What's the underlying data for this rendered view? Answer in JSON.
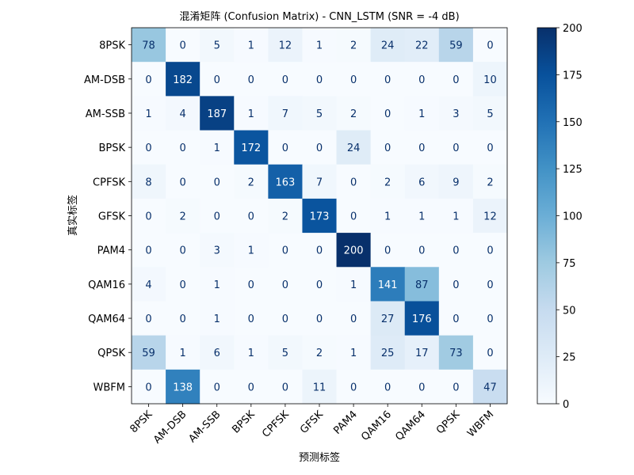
{
  "chart_data": {
    "type": "heatmap",
    "title": "混淆矩阵 (Confusion Matrix) - CNN_LSTM (SNR = -4 dB)",
    "xlabel": "预测标签",
    "ylabel": "真实标签",
    "x_categories": [
      "8PSK",
      "AM-DSB",
      "AM-SSB",
      "BPSK",
      "CPFSK",
      "GFSK",
      "PAM4",
      "QAM16",
      "QAM64",
      "QPSK",
      "WBFM"
    ],
    "y_categories": [
      "8PSK",
      "AM-DSB",
      "AM-SSB",
      "BPSK",
      "CPFSK",
      "GFSK",
      "PAM4",
      "QAM16",
      "QAM64",
      "QPSK",
      "WBFM"
    ],
    "values": [
      [
        78,
        0,
        5,
        1,
        12,
        1,
        2,
        24,
        22,
        59,
        0
      ],
      [
        0,
        182,
        0,
        0,
        0,
        0,
        0,
        0,
        0,
        0,
        10
      ],
      [
        1,
        4,
        187,
        1,
        7,
        5,
        2,
        0,
        1,
        3,
        5
      ],
      [
        0,
        0,
        1,
        172,
        0,
        0,
        24,
        0,
        0,
        0,
        0
      ],
      [
        8,
        0,
        0,
        2,
        163,
        7,
        0,
        2,
        6,
        9,
        2
      ],
      [
        0,
        2,
        0,
        0,
        2,
        173,
        0,
        1,
        1,
        1,
        12
      ],
      [
        0,
        0,
        3,
        1,
        0,
        0,
        200,
        0,
        0,
        0,
        0
      ],
      [
        4,
        0,
        1,
        0,
        0,
        0,
        1,
        141,
        87,
        0,
        0
      ],
      [
        0,
        0,
        1,
        0,
        0,
        0,
        0,
        27,
        176,
        0,
        0
      ],
      [
        59,
        1,
        6,
        1,
        5,
        2,
        1,
        25,
        17,
        73,
        0
      ],
      [
        0,
        138,
        0,
        0,
        0,
        11,
        0,
        0,
        0,
        0,
        47
      ]
    ],
    "colormap": "Blues",
    "vmin": 0,
    "vmax": 200,
    "colorbar_ticks": [
      0,
      25,
      50,
      75,
      100,
      125,
      150,
      175,
      200
    ]
  }
}
